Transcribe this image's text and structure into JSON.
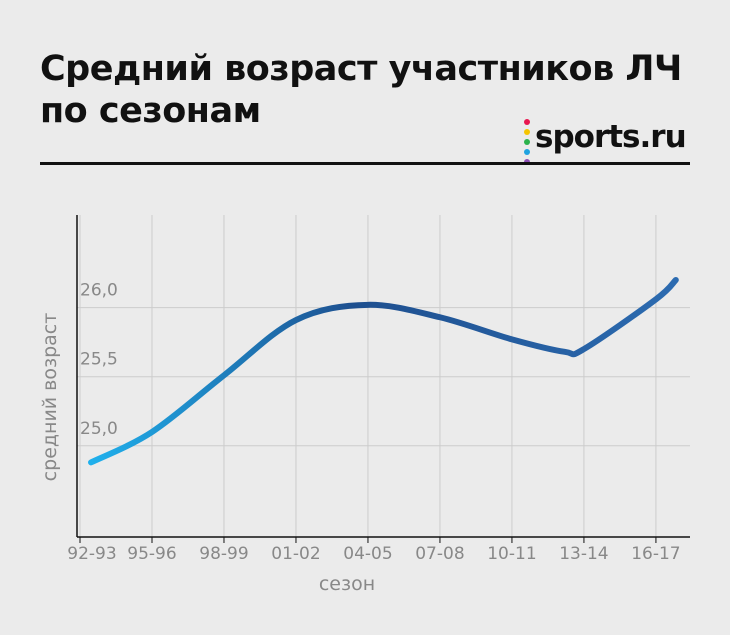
{
  "chart_data": {
    "type": "line",
    "title": [
      "Средний возраст участников ЛЧ",
      "по сезонам"
    ],
    "logo": "sports.ru",
    "x_label": "сезон",
    "y_label": "средний возраст",
    "x": [
      1992.46,
      1995,
      1998,
      2001,
      2004,
      2007,
      2010,
      2012.2,
      2013,
      2016,
      2016.83
    ],
    "values": [
      24.88,
      25.1,
      25.51,
      25.91,
      26.02,
      25.93,
      25.77,
      25.68,
      25.7,
      26.06,
      26.2
    ],
    "color": [
      "#1fb0ec",
      "#1e4f8f",
      "#2c6bb0"
    ],
    "xlim": [
      1991.875,
      2017.42
    ],
    "xticks": [
      {
        "value": 1992,
        "label": "92-93"
      },
      {
        "value": 1995,
        "label": "95-96"
      },
      {
        "value": 1998,
        "label": "98-99"
      },
      {
        "value": 2001,
        "label": "01-02"
      },
      {
        "value": 2004,
        "label": "04-05"
      },
      {
        "value": 2007,
        "label": "07-08"
      },
      {
        "value": 2010,
        "label": "10-11"
      },
      {
        "value": 2013,
        "label": "13-14"
      },
      {
        "value": 2016,
        "label": "16-17"
      }
    ],
    "ylim": [
      24.34,
      26.67
    ],
    "yticks": [
      {
        "value": 25,
        "label": "25,0"
      },
      {
        "value": 25.5,
        "label": "25,5"
      },
      {
        "value": 26,
        "label": "26,0"
      }
    ],
    "grid": true
  }
}
